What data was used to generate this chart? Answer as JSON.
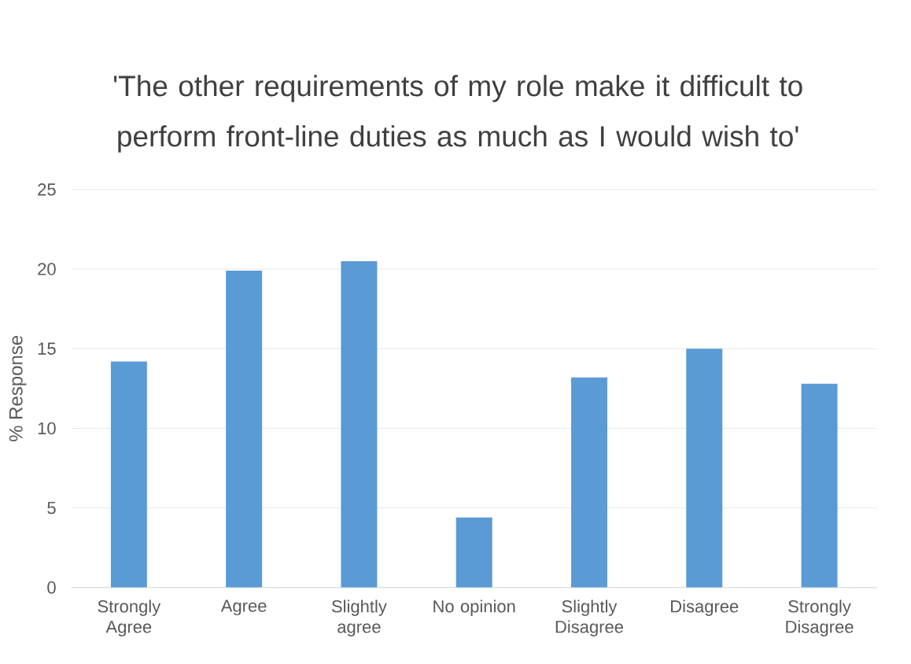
{
  "chart_data": {
    "type": "bar",
    "title": "'The other requirements of my role make it difficult to perform front-line duties as much as I would wish to'",
    "ylabel": "% Response",
    "categories": [
      "Strongly Agree",
      "Agree",
      "Slightly agree",
      "No opinion",
      "Slightly Disagree",
      "Disagree",
      "Strongly Disagree"
    ],
    "values": [
      14.2,
      19.9,
      20.5,
      4.4,
      13.2,
      15.0,
      12.8
    ],
    "color": "#5b9bd5",
    "ylim": [
      0,
      25
    ],
    "yticks": [
      0,
      5,
      10,
      15,
      20,
      25
    ],
    "grid": "y"
  }
}
